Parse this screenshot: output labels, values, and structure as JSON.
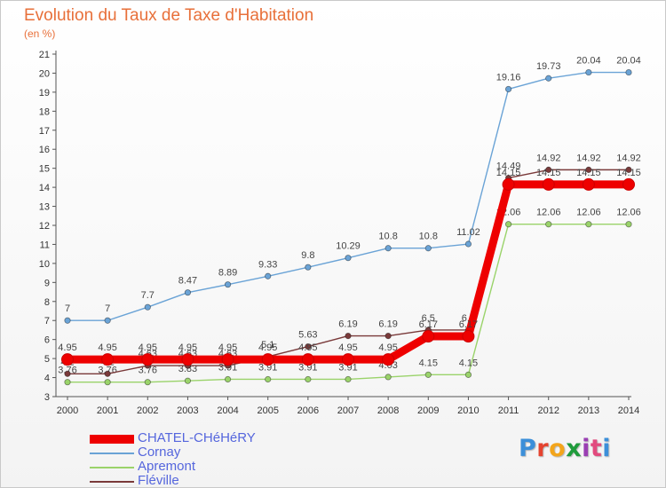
{
  "title": "Evolution du Taux de Taxe d'Habitation",
  "subtitle": "(en %)",
  "logo": {
    "text": "Proxiti",
    "colors": [
      "#3c8fd9",
      "#e5432f",
      "#f3a51b",
      "#1f9b3b",
      "#9a3fb3",
      "#e24b7e",
      "#3c8fd9"
    ]
  },
  "colors": {
    "title": "#e8703a",
    "axis": "#555555",
    "grid": "#e4e4e4",
    "legend_text": "#5566dd"
  },
  "chart_data": {
    "type": "line",
    "title": "Evolution du Taux de Taxe d'Habitation",
    "subtitle": "(en %)",
    "xlabel": "",
    "ylabel": "",
    "x": [
      "2000",
      "2001",
      "2002",
      "2003",
      "2004",
      "2005",
      "2006",
      "2007",
      "2008",
      "2009",
      "2010",
      "2011",
      "2012",
      "2013",
      "2014"
    ],
    "ylim": [
      3,
      21
    ],
    "yticks": [
      3,
      4,
      5,
      6,
      7,
      8,
      9,
      10,
      11,
      12,
      13,
      14,
      15,
      16,
      17,
      18,
      19,
      20,
      21
    ],
    "grid": false,
    "legend_position": "bottom-left",
    "series": [
      {
        "name": "CHATEL-CHéHéRY",
        "color": "#ee0000",
        "emphasis": true,
        "values": [
          4.95,
          4.95,
          4.95,
          4.95,
          4.95,
          4.95,
          4.95,
          4.95,
          4.95,
          6.17,
          6.17,
          14.15,
          14.15,
          14.15,
          14.15
        ],
        "labels": [
          "4.95",
          "4.95",
          "4.95",
          "4.95",
          "4.95",
          "4.95",
          "4.95",
          "4.95",
          "4.95",
          "6.17",
          "6.17",
          "14.15",
          "14.15",
          "14.15",
          "14.15"
        ]
      },
      {
        "name": "Cornay",
        "color": "#6aa3d6",
        "values": [
          7,
          7,
          7.7,
          8.47,
          8.89,
          9.33,
          9.8,
          10.29,
          10.8,
          10.8,
          11.02,
          19.16,
          19.73,
          20.04,
          20.04
        ],
        "labels": [
          "7",
          "7",
          "7.7",
          "8.47",
          "8.89",
          "9.33",
          "9.8",
          "10.29",
          "10.8",
          "10.8",
          "11.02",
          "19.16",
          "19.73",
          "20.04",
          "20.04"
        ]
      },
      {
        "name": "Apremont",
        "color": "#9ad36a",
        "values": [
          3.76,
          3.76,
          3.76,
          3.83,
          3.91,
          3.91,
          3.91,
          3.91,
          4.03,
          4.15,
          4.15,
          12.06,
          12.06,
          12.06,
          12.06
        ],
        "labels": [
          "3.76",
          "3.76",
          "3.76",
          "3.83",
          "3.91",
          "3.91",
          "3.91",
          "3.91",
          "4.03",
          "4.15",
          "4.15",
          "12.06",
          "12.06",
          "12.06",
          "12.06"
        ]
      },
      {
        "name": "Fléville",
        "color": "#7a3a3a",
        "values": [
          4.2,
          4.2,
          4.63,
          4.63,
          4.63,
          5.1,
          5.63,
          6.19,
          6.19,
          6.5,
          6.5,
          14.49,
          14.92,
          14.92,
          14.92
        ],
        "labels": [
          "4.2",
          "4.2",
          "4.63",
          "4.63",
          "4.63",
          "5.1",
          "5.63",
          "6.19",
          "6.19",
          "6.5",
          "6.5",
          "14.49",
          "14.92",
          "14.92",
          "14.92"
        ]
      }
    ]
  }
}
